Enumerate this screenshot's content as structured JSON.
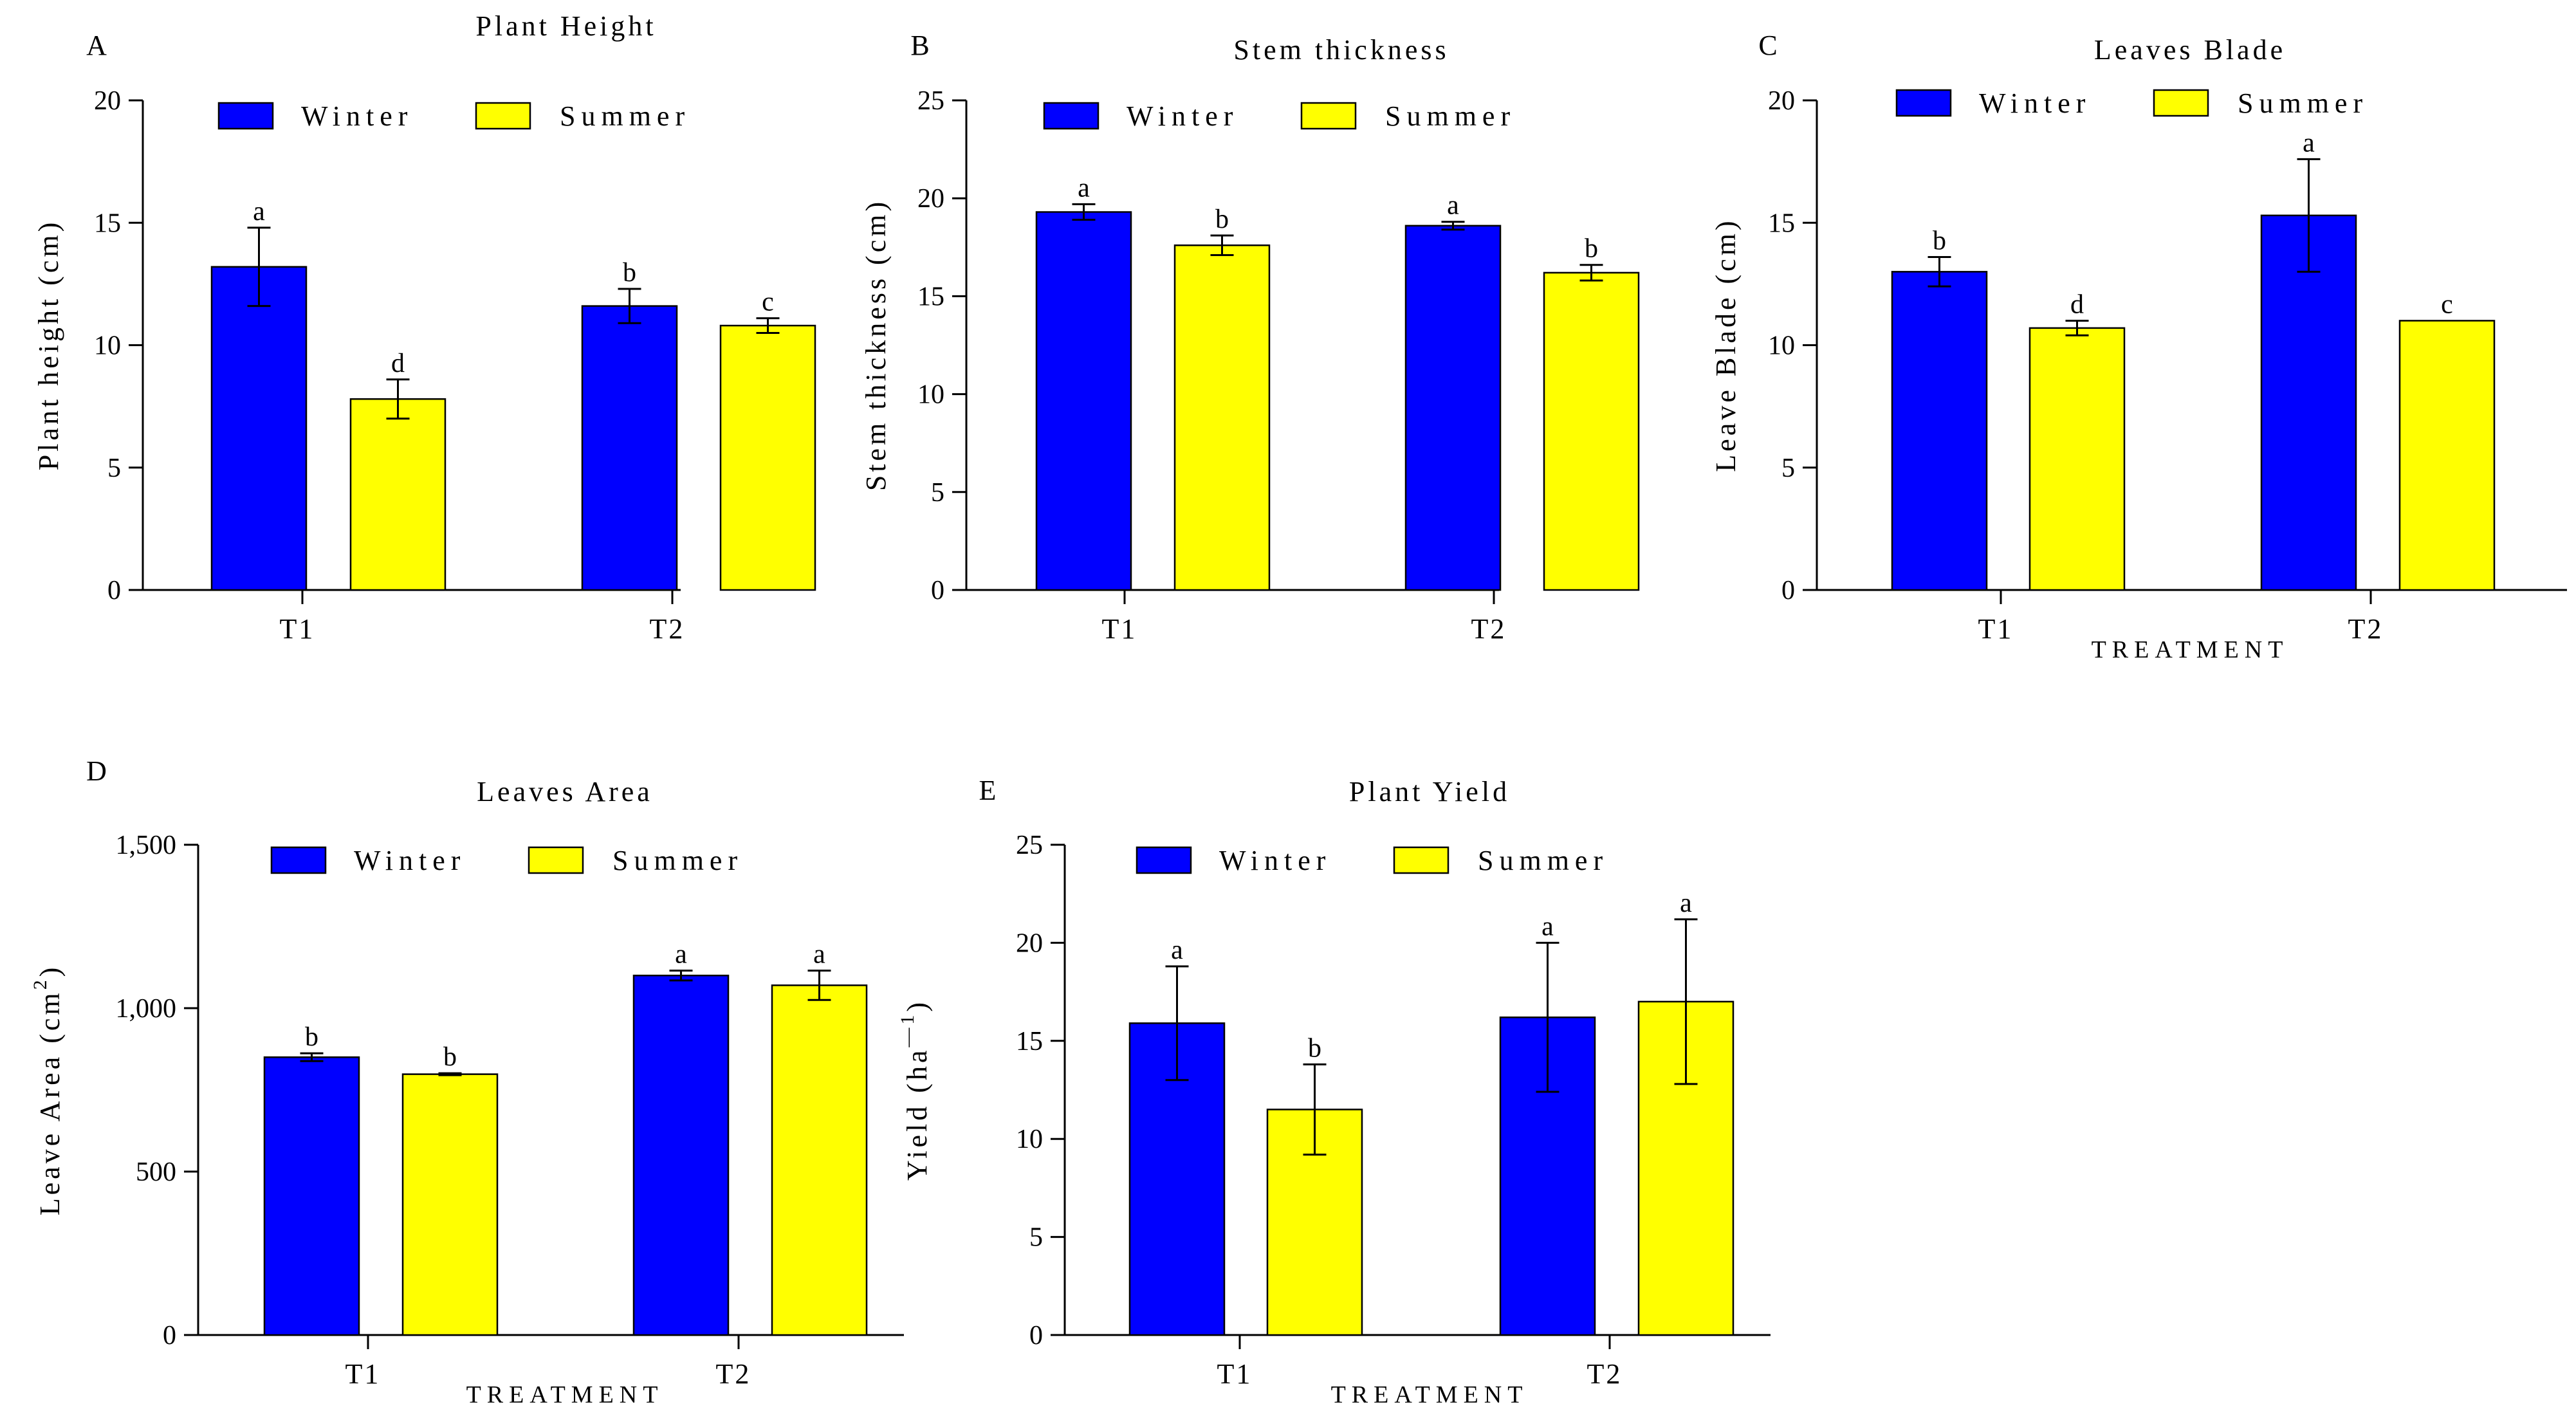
{
  "colors": {
    "winter": "#0000ff",
    "summer": "#ffff00"
  },
  "legend": {
    "winter": "Winter",
    "summer": "Summer"
  },
  "chart_data": [
    {
      "panel": "A",
      "type": "bar",
      "title": "Plant Height",
      "ylabel": "Plant height (cm)",
      "xlabel": "",
      "categories": [
        "T1",
        "T2"
      ],
      "ylim": [
        0,
        20
      ],
      "yticks": [
        0,
        5,
        10,
        15,
        20
      ],
      "yticklabels": [
        "0",
        "5",
        "10",
        "15",
        "20"
      ],
      "series": [
        {
          "name": "Winter",
          "values": [
            13.2,
            11.6
          ],
          "errors": [
            1.6,
            0.7
          ],
          "sig": [
            "a",
            "b"
          ]
        },
        {
          "name": "Summer",
          "values": [
            7.8,
            10.8
          ],
          "errors": [
            0.8,
            0.3
          ],
          "sig": [
            "d",
            "c"
          ]
        }
      ]
    },
    {
      "panel": "B",
      "type": "bar",
      "title": "Stem thickness",
      "ylabel": "Stem thickness (cm)",
      "xlabel": "",
      "categories": [
        "T1",
        "T2"
      ],
      "ylim": [
        0,
        25
      ],
      "yticks": [
        0,
        5,
        10,
        15,
        20,
        25
      ],
      "yticklabels": [
        "0",
        "5",
        "10",
        "15",
        "20",
        "25"
      ],
      "series": [
        {
          "name": "Winter",
          "values": [
            19.3,
            18.6
          ],
          "errors": [
            0.4,
            0.2
          ],
          "sig": [
            "a",
            "a"
          ]
        },
        {
          "name": "Summer",
          "values": [
            17.6,
            16.2
          ],
          "errors": [
            0.5,
            0.4
          ],
          "sig": [
            "b",
            "b"
          ]
        }
      ]
    },
    {
      "panel": "C",
      "type": "bar",
      "title": "Leaves Blade",
      "ylabel": "Leave Blade (cm)",
      "xlabel": "TREATMENT",
      "categories": [
        "T1",
        "T2"
      ],
      "ylim": [
        0,
        20
      ],
      "yticks": [
        0,
        5,
        10,
        15,
        20
      ],
      "yticklabels": [
        "0",
        "5",
        "10",
        "15",
        "20"
      ],
      "series": [
        {
          "name": "Winter",
          "values": [
            13.0,
            15.3
          ],
          "errors": [
            0.6,
            2.3
          ],
          "sig": [
            "b",
            "a"
          ]
        },
        {
          "name": "Summer",
          "values": [
            10.7,
            11.0
          ],
          "errors": [
            0.3,
            0.0
          ],
          "sig": [
            "d",
            "c"
          ]
        }
      ]
    },
    {
      "panel": "D",
      "type": "bar",
      "title": "Leaves Area",
      "ylabel": "Leave Area (cm",
      "ylabel_sup": "2",
      "ylabel_end": ")",
      "xlabel": "TREATMENT",
      "categories": [
        "T1",
        "T2"
      ],
      "ylim": [
        0,
        1500
      ],
      "yticks": [
        0,
        500,
        1000,
        1500
      ],
      "yticklabels": [
        "0",
        "500",
        "1,000",
        "1,500"
      ],
      "series": [
        {
          "name": "Winter",
          "values": [
            850,
            1100
          ],
          "errors": [
            12,
            15
          ],
          "sig": [
            "b",
            "a"
          ]
        },
        {
          "name": "Summer",
          "values": [
            798,
            1070
          ],
          "errors": [
            3,
            45
          ],
          "sig": [
            "b",
            "a"
          ]
        }
      ]
    },
    {
      "panel": "E",
      "type": "bar",
      "title": "Plant Yield",
      "ylabel": "Yield (ha",
      "ylabel_sup": "—1",
      "ylabel_end": ")",
      "xlabel": "TREATMENT",
      "categories": [
        "T1",
        "T2"
      ],
      "ylim": [
        0,
        25
      ],
      "yticks": [
        0,
        5,
        10,
        15,
        20,
        25
      ],
      "yticklabels": [
        "0",
        "5",
        "10",
        "15",
        "20",
        "25"
      ],
      "series": [
        {
          "name": "Winter",
          "values": [
            15.9,
            16.2
          ],
          "errors": [
            2.9,
            3.8
          ],
          "sig": [
            "a",
            "a"
          ]
        },
        {
          "name": "Summer",
          "values": [
            11.5,
            17.0
          ],
          "errors": [
            2.3,
            4.2
          ],
          "sig": [
            "b",
            "a"
          ]
        }
      ]
    }
  ]
}
